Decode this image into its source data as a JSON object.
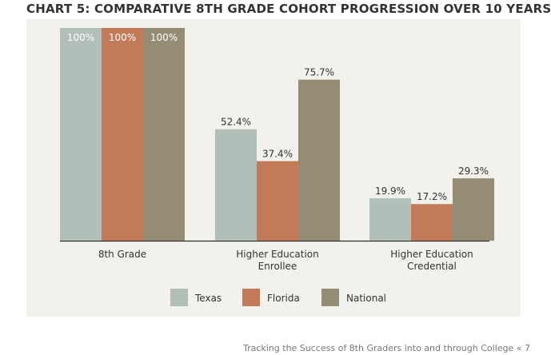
{
  "title": "CHART 5: COMPARATIVE 8TH GRADE COHORT PROGRESSION OVER 10 YEARS",
  "footer": "Tracking the Success of 8th Graders into and through College « 7",
  "colors": {
    "panel_bg": "#f3f1eb",
    "texas": "#b2bfb9",
    "florida": "#c27a58",
    "national": "#948c74",
    "text": "#333333"
  },
  "chart_data": {
    "type": "bar",
    "title": "CHART 5: COMPARATIVE 8TH GRADE COHORT PROGRESSION OVER 10 YEARS",
    "xlabel": "",
    "ylabel": "",
    "ylim": [
      0,
      100
    ],
    "grid": false,
    "legend_position": "bottom",
    "categories": [
      [
        "8th Grade"
      ],
      [
        "Higher Education",
        "Enrollee"
      ],
      [
        "Higher Education",
        "Credential"
      ]
    ],
    "series": [
      {
        "name": "Texas",
        "values": [
          100,
          52.4,
          19.9
        ],
        "labels": [
          "100%",
          "52.4%",
          "19.9%"
        ]
      },
      {
        "name": "Florida",
        "values": [
          100,
          37.4,
          17.2
        ],
        "labels": [
          "100%",
          "37.4%",
          "17.2%"
        ]
      },
      {
        "name": "National",
        "values": [
          100,
          75.7,
          29.3
        ],
        "labels": [
          "100%",
          "75.7%",
          "29.3%"
        ]
      }
    ]
  }
}
